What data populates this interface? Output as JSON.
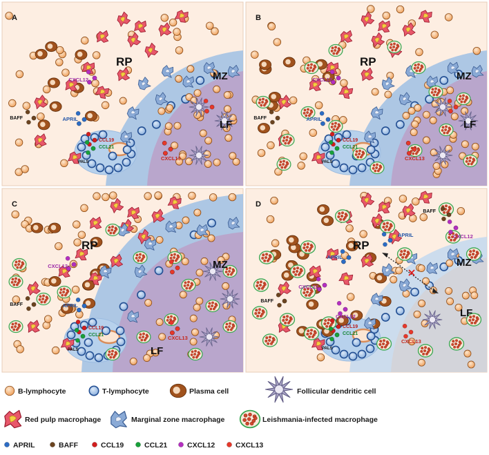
{
  "panels": [
    {
      "id": "A",
      "letter": "A",
      "rp": "RP",
      "mz": "MZ",
      "lf": "LF",
      "pals": "PALS",
      "cxcl12": "CXCL12",
      "april": "APRIL",
      "baff": "BAFF",
      "ccl19": "CCL19",
      "ccl21": "CCL21",
      "cxcl13": "CXCL13"
    },
    {
      "id": "B",
      "letter": "B",
      "rp": "RP",
      "mz": "MZ",
      "lf": "LF",
      "pals": "PALS",
      "cxcl12": "CXCL12",
      "april": "APRIL",
      "baff": "BAFF",
      "ccl19": "CCL19",
      "ccl21": "CCL21",
      "cxcl13": "CXCL13"
    },
    {
      "id": "C",
      "letter": "C",
      "rp": "RP",
      "mz": "MZ",
      "lf": "LF",
      "pals": "PALS",
      "cxcl12": "CXCL12",
      "april": "APRIL",
      "baff": "BAFF",
      "ccl19": "CCL19",
      "ccl21": "CCL21",
      "cxcl13": "CXCL13"
    },
    {
      "id": "D",
      "letter": "D",
      "rp": "RP",
      "mz": "MZ",
      "lf": "LF",
      "pals": "PALS",
      "cxcl12": "CXCL12",
      "cxcl12b": "CXCL12",
      "cxcl12c": "CXCL12",
      "april": "APRIL",
      "aprilb": "APRIL",
      "baff": "BAFF",
      "baffb": "BAFF",
      "ccl19": "CCL19",
      "ccl21": "CCL21",
      "cxcl13": "CXCL13"
    }
  ],
  "legend": {
    "row1": [
      "B-lymphocyte",
      "T-lymphocyte",
      "Plasma cell",
      "Follicular dendritic cell"
    ],
    "row2": [
      "Red pulp macrophage",
      "Marginal zone macrophage",
      "Leishmania-infected macrophage"
    ],
    "row3": [
      "APRIL",
      "BAFF",
      "CCL19",
      "CCL21",
      "CXCL12",
      "CXCL13"
    ]
  },
  "colors": {
    "panel_bg": "#fdeee2",
    "mz": "#a9c4e4",
    "lf": "#b9a6cc",
    "lf_d": "#d3d4da",
    "pals": "#b7d1ec",
    "b_cell": "#f2ac70",
    "t_cell": "#4d7fc0",
    "plasma": "#a0521d",
    "rp_macro": "#e8576a",
    "mz_macro": "#8aaad6",
    "fdc": "#a9a4c6",
    "april": "#2c6cc4",
    "baff": "#6b4420",
    "ccl19": "#d21e1e",
    "ccl21": "#18a03a",
    "cxcl12": "#b42fc0",
    "cxcl13": "#e6382a"
  }
}
